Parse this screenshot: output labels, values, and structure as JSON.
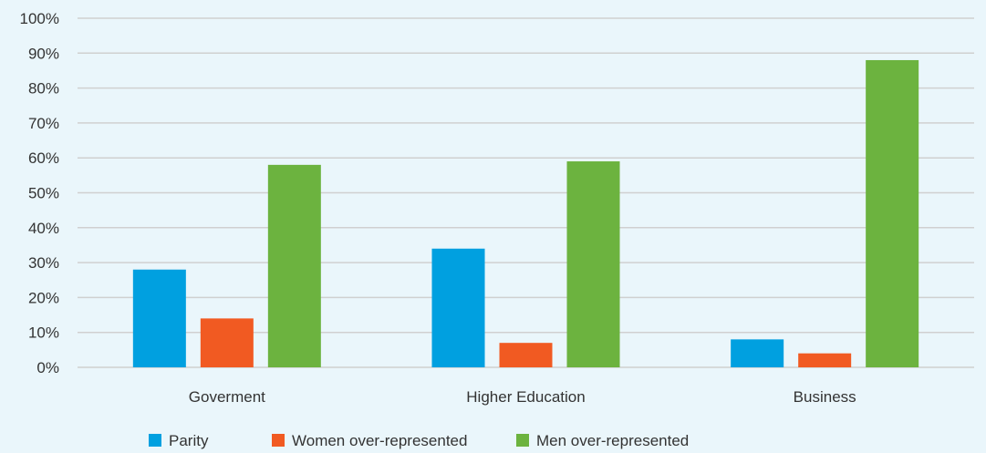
{
  "colors": {
    "background": "#eaf6fb",
    "grid": "#d0d0d0",
    "text": "#333333"
  },
  "chart_data": {
    "type": "bar",
    "categories": [
      "Goverment",
      "Higher Education",
      "Business"
    ],
    "series": [
      {
        "name": "Parity",
        "color": "#00a0e0",
        "values": [
          28,
          34,
          8
        ]
      },
      {
        "name": "Women over-represented",
        "color": "#f15a22",
        "values": [
          14,
          7,
          4
        ]
      },
      {
        "name": "Men over-represented",
        "color": "#6cb33f",
        "values": [
          58,
          59,
          88
        ]
      }
    ],
    "ylim": [
      0,
      100
    ],
    "yticks": [
      0,
      10,
      20,
      30,
      40,
      50,
      60,
      70,
      80,
      90,
      100
    ],
    "ytick_suffix": "%",
    "grid": true,
    "legend_position": "bottom"
  }
}
